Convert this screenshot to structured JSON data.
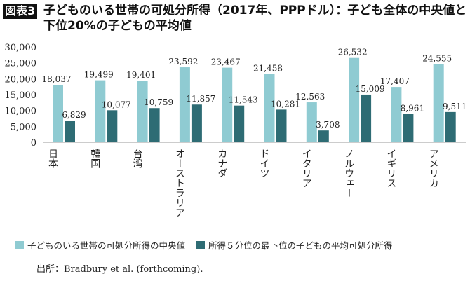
{
  "header": {
    "badge": "図表3",
    "title": "子どものいる世帯の可処分所得（2017年、PPPドル）：子ども全体の中央値と下位20%の子どもの平均値"
  },
  "chart_data": {
    "type": "bar",
    "title": "子どものいる世帯の可処分所得（2017年、PPPドル）：子ども全体の中央値と下位20%の子どもの平均値",
    "categories": [
      "日本",
      "韓国",
      "台湾",
      "オーストラリア",
      "カナダ",
      "ドイツ",
      "イタリア",
      "ノルウェー",
      "イギリス",
      "アメリカ"
    ],
    "series": [
      {
        "name": "子どものいる世帯の可処分所得の中央値",
        "color": "#8fcbd2",
        "values": [
          18037,
          19499,
          19401,
          23592,
          23467,
          21458,
          12563,
          26532,
          17407,
          24555
        ]
      },
      {
        "name": "所得５分位の最下位の子どもの平均可処分所得",
        "color": "#2e6c74",
        "values": [
          6829,
          10077,
          10759,
          11857,
          11543,
          10281,
          3708,
          15009,
          8961,
          9511
        ]
      }
    ],
    "ylim": [
      0,
      30000
    ],
    "yticks": [
      "0",
      "5,000",
      "10,000",
      "15,000",
      "20,000",
      "25,000",
      "30,000"
    ],
    "grid": false,
    "legend": "bottom",
    "xlabel": "",
    "ylabel": ""
  },
  "source": "出所：Bradbury et al. (forthcoming)."
}
